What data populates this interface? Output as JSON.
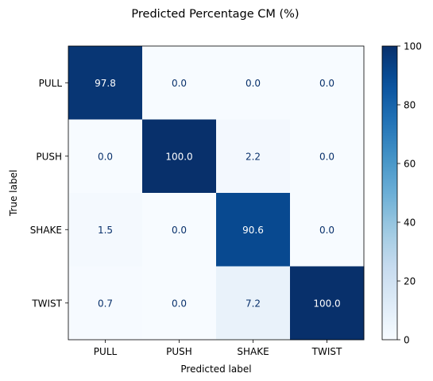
{
  "chart_data": {
    "type": "heatmap",
    "title": "Predicted Percentage CM (%)",
    "xlabel": "Predicted label",
    "ylabel": "True label",
    "x_categories": [
      "PULL",
      "PUSH",
      "SHAKE",
      "TWIST"
    ],
    "y_categories": [
      "PULL",
      "PUSH",
      "SHAKE",
      "TWIST"
    ],
    "values": [
      [
        97.8,
        0.0,
        0.0,
        0.0
      ],
      [
        0.0,
        100.0,
        2.2,
        0.0
      ],
      [
        1.5,
        0.0,
        90.6,
        0.0
      ],
      [
        0.7,
        0.0,
        7.2,
        100.0
      ]
    ],
    "value_format": "0.1f",
    "colormap": "Blues",
    "color_range": [
      0,
      100
    ],
    "colorbar_ticks": [
      0,
      20,
      40,
      60,
      80,
      100
    ],
    "colors": {
      "low": "#f7fbff",
      "high": "#08306b",
      "text_dark": "#08306b",
      "text_light": "#ffffff"
    }
  }
}
